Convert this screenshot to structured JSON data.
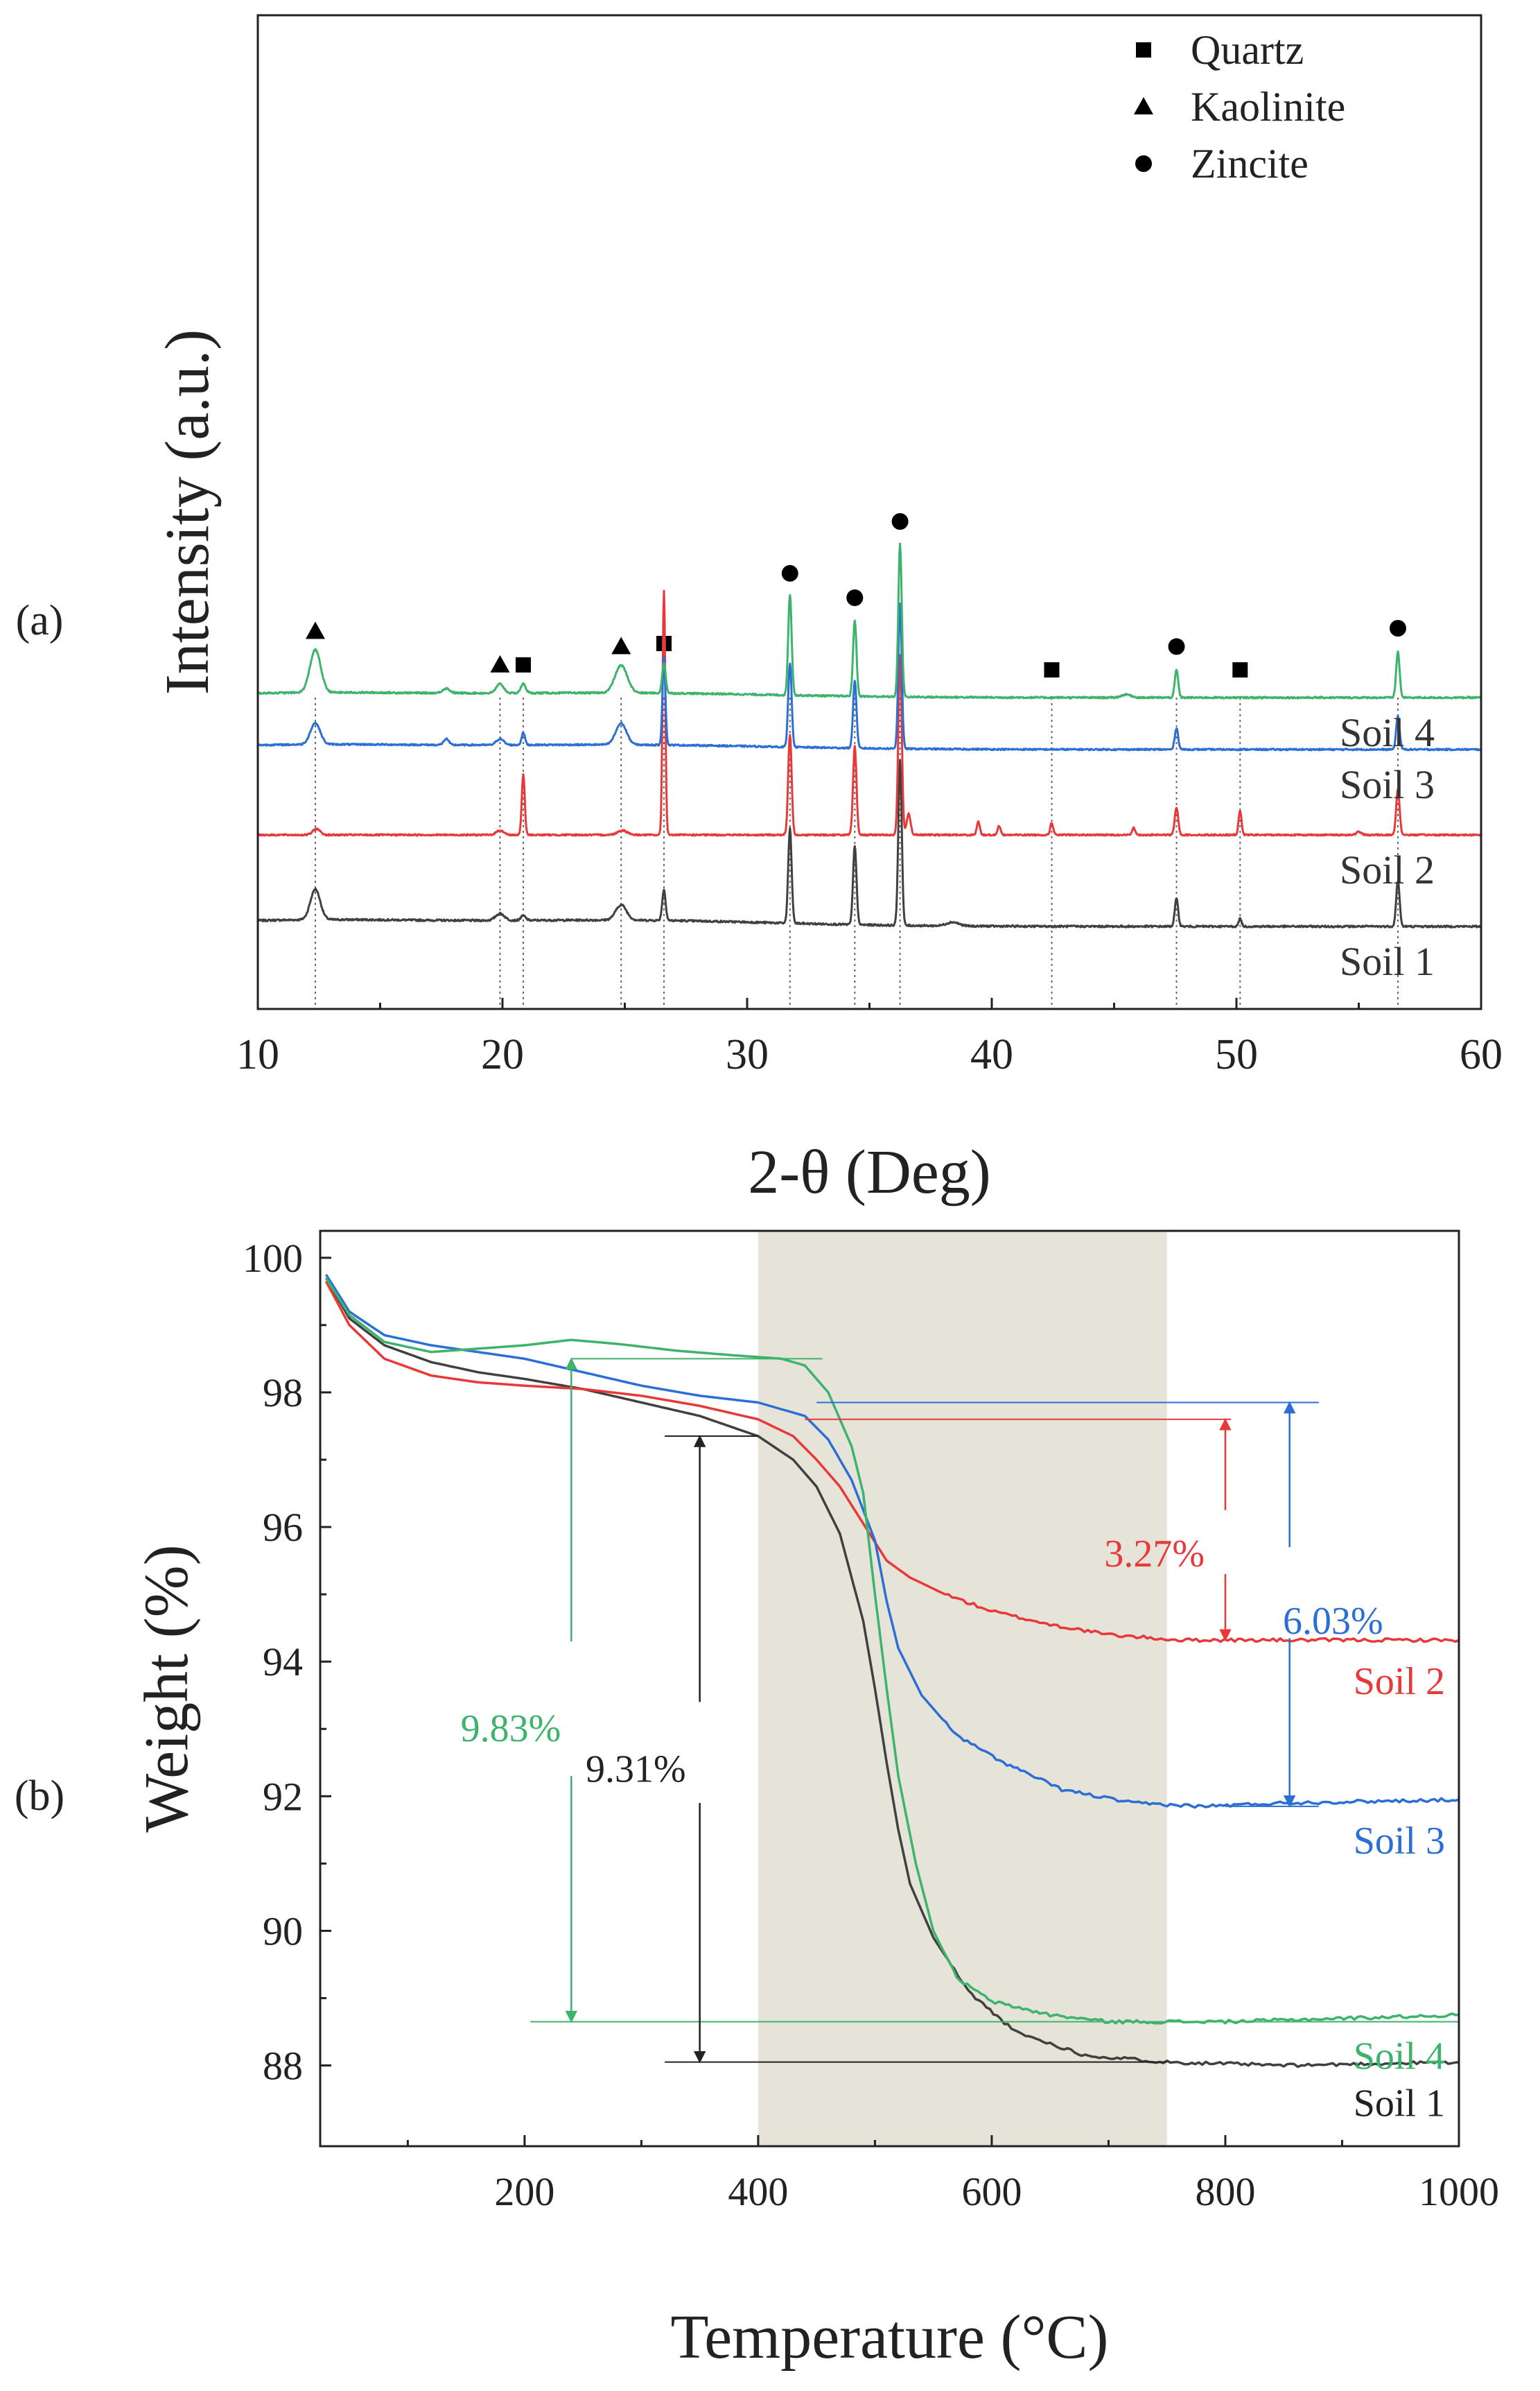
{
  "panel_labels": {
    "a": "(a)",
    "b": "(b)"
  },
  "chart_data": [
    {
      "type": "line",
      "panel": "a",
      "xlabel": "2-θ (Deg)",
      "ylabel": "Intensity (a.u.)",
      "xlim": [
        10,
        60
      ],
      "xticks": [
        10,
        20,
        30,
        40,
        50,
        60
      ],
      "yaxis_ticks_labeled": false,
      "grid": false,
      "background": "0.0",
      "legend": {
        "position": "top-right",
        "entries": [
          {
            "marker": "square",
            "label": "Quartz"
          },
          {
            "marker": "triangle",
            "label": "Kaolinite"
          },
          {
            "marker": "circle",
            "label": "Zincite"
          }
        ]
      },
      "series": [
        {
          "name": "Soil 1",
          "color": "#404040",
          "baseline": 0,
          "noise": 1.2,
          "peaks": [
            [
              12.35,
              20,
              0.2
            ],
            [
              19.9,
              4.5,
              0.18
            ],
            [
              20.85,
              3,
              0.1
            ],
            [
              24.85,
              10,
              0.22
            ],
            [
              26.6,
              20,
              0.07
            ],
            [
              31.75,
              62,
              0.07
            ],
            [
              34.4,
              52,
              0.07
            ],
            [
              36.25,
              108,
              0.07
            ],
            [
              38.4,
              2.5,
              0.25
            ],
            [
              47.55,
              18,
              0.07
            ],
            [
              50.15,
              5,
              0.06
            ],
            [
              56.6,
              30,
              0.07
            ]
          ],
          "humps": [
            [
              12,
              4,
              5
            ],
            [
              25,
              4,
              6
            ]
          ]
        },
        {
          "name": "Soil 2",
          "color": "#e8393a",
          "baseline": 60,
          "noise": 1.0,
          "peaks": [
            [
              12.4,
              4,
              0.15
            ],
            [
              19.9,
              3,
              0.15
            ],
            [
              20.85,
              40,
              0.06
            ],
            [
              24.9,
              3,
              0.2
            ],
            [
              26.6,
              160,
              0.055
            ],
            [
              31.75,
              66,
              0.07
            ],
            [
              34.4,
              58,
              0.07
            ],
            [
              36.25,
              118,
              0.07
            ],
            [
              36.6,
              14,
              0.08
            ],
            [
              39.45,
              9,
              0.06
            ],
            [
              40.3,
              6,
              0.06
            ],
            [
              42.45,
              8,
              0.06
            ],
            [
              45.8,
              5,
              0.06
            ],
            [
              47.55,
              18,
              0.07
            ],
            [
              50.15,
              16,
              0.06
            ],
            [
              55,
              2,
              0.1
            ],
            [
              56.6,
              30,
              0.07
            ]
          ],
          "humps": []
        },
        {
          "name": "Soil 3",
          "color": "#2b6fd6",
          "baseline": 116,
          "noise": 1.0,
          "peaks": [
            [
              12.35,
              14,
              0.2
            ],
            [
              17.7,
              4,
              0.1
            ],
            [
              19.9,
              4,
              0.15
            ],
            [
              20.85,
              8,
              0.07
            ],
            [
              24.85,
              14,
              0.22
            ],
            [
              26.6,
              58,
              0.06
            ],
            [
              31.75,
              55,
              0.07
            ],
            [
              34.4,
              44,
              0.07
            ],
            [
              36.25,
              95,
              0.07
            ],
            [
              47.55,
              14,
              0.07
            ],
            [
              56.6,
              22,
              0.07
            ]
          ],
          "humps": [
            [
              12,
              3,
              5
            ],
            [
              25,
              3,
              6
            ]
          ]
        },
        {
          "name": "Soil 4",
          "color": "#3db36b",
          "baseline": 150,
          "noise": 1.1,
          "peaks": [
            [
              12.35,
              28,
              0.22
            ],
            [
              17.7,
              3,
              0.15
            ],
            [
              19.9,
              6,
              0.15
            ],
            [
              20.85,
              6,
              0.1
            ],
            [
              24.85,
              18,
              0.25
            ],
            [
              26.6,
              20,
              0.07
            ],
            [
              31.75,
              66,
              0.07
            ],
            [
              34.4,
              50,
              0.07
            ],
            [
              36.25,
              100,
              0.07
            ],
            [
              45.5,
              2,
              0.2
            ],
            [
              47.55,
              18,
              0.07
            ],
            [
              56.6,
              30,
              0.07
            ]
          ],
          "humps": [
            [
              12,
              3,
              5
            ],
            [
              25,
              3,
              6
            ]
          ]
        }
      ],
      "phase_markers": [
        {
          "x": 12.35,
          "mineral": "Kaolinite"
        },
        {
          "x": 19.9,
          "mineral": "Kaolinite"
        },
        {
          "x": 20.85,
          "mineral": "Quartz"
        },
        {
          "x": 24.85,
          "mineral": "Kaolinite"
        },
        {
          "x": 26.6,
          "mineral": "Quartz"
        },
        {
          "x": 31.75,
          "mineral": "Zincite"
        },
        {
          "x": 34.4,
          "mineral": "Zincite"
        },
        {
          "x": 36.25,
          "mineral": "Zincite"
        },
        {
          "x": 42.45,
          "mineral": "Quartz"
        },
        {
          "x": 47.55,
          "mineral": "Zincite"
        },
        {
          "x": 50.15,
          "mineral": "Quartz"
        },
        {
          "x": 56.6,
          "mineral": "Zincite"
        }
      ]
    },
    {
      "type": "line",
      "panel": "b",
      "xlabel": "Temperature (°C)",
      "ylabel": "Weight (%)",
      "xlim": [
        25,
        1000
      ],
      "ylim": [
        86.8,
        100.4
      ],
      "xticks": [
        200,
        400,
        600,
        800,
        1000
      ],
      "yticks": [
        88,
        90,
        92,
        94,
        96,
        98,
        100
      ],
      "grid": false,
      "shaded_range": {
        "x": [
          400,
          750
        ],
        "color": "#e6e4d9"
      },
      "series": [
        {
          "name": "Soil 1",
          "color": "#404040",
          "label_color": "#222222",
          "points": [
            [
              30,
              99.7
            ],
            [
              50,
              99.1
            ],
            [
              80,
              98.7
            ],
            [
              120,
              98.45
            ],
            [
              160,
              98.3
            ],
            [
              200,
              98.2
            ],
            [
              250,
              98.05
            ],
            [
              300,
              97.85
            ],
            [
              350,
              97.65
            ],
            [
              400,
              97.35
            ],
            [
              430,
              97.0
            ],
            [
              450,
              96.6
            ],
            [
              470,
              95.9
            ],
            [
              490,
              94.6
            ],
            [
              500,
              93.6
            ],
            [
              510,
              92.5
            ],
            [
              520,
              91.5
            ],
            [
              530,
              90.7
            ],
            [
              550,
              89.9
            ],
            [
              580,
              89.1
            ],
            [
              620,
              88.5
            ],
            [
              680,
              88.15
            ],
            [
              750,
              88.05
            ],
            [
              850,
              88.0
            ],
            [
              1000,
              88.05
            ]
          ]
        },
        {
          "name": "Soil 2",
          "color": "#e8393a",
          "label_color": "#e8393a",
          "points": [
            [
              30,
              99.65
            ],
            [
              50,
              99.0
            ],
            [
              80,
              98.5
            ],
            [
              120,
              98.25
            ],
            [
              160,
              98.15
            ],
            [
              200,
              98.1
            ],
            [
              250,
              98.05
            ],
            [
              300,
              97.95
            ],
            [
              350,
              97.8
            ],
            [
              400,
              97.6
            ],
            [
              430,
              97.35
            ],
            [
              450,
              97.0
            ],
            [
              470,
              96.6
            ],
            [
              490,
              96.05
            ],
            [
              510,
              95.5
            ],
            [
              530,
              95.25
            ],
            [
              560,
              95.0
            ],
            [
              600,
              94.75
            ],
            [
              650,
              94.55
            ],
            [
              700,
              94.4
            ],
            [
              760,
              94.32
            ],
            [
              850,
              94.32
            ],
            [
              1000,
              94.32
            ]
          ]
        },
        {
          "name": "Soil 3",
          "color": "#2b6fd6",
          "label_color": "#2b6fd6",
          "points": [
            [
              30,
              99.75
            ],
            [
              50,
              99.2
            ],
            [
              80,
              98.85
            ],
            [
              120,
              98.7
            ],
            [
              160,
              98.6
            ],
            [
              200,
              98.5
            ],
            [
              250,
              98.3
            ],
            [
              300,
              98.1
            ],
            [
              350,
              97.95
            ],
            [
              400,
              97.85
            ],
            [
              440,
              97.65
            ],
            [
              460,
              97.3
            ],
            [
              480,
              96.7
            ],
            [
              500,
              95.8
            ],
            [
              510,
              94.9
            ],
            [
              520,
              94.2
            ],
            [
              540,
              93.5
            ],
            [
              570,
              92.9
            ],
            [
              610,
              92.5
            ],
            [
              660,
              92.1
            ],
            [
              720,
              91.9
            ],
            [
              780,
              91.85
            ],
            [
              850,
              91.9
            ],
            [
              1000,
              91.95
            ]
          ]
        },
        {
          "name": "Soil 4",
          "color": "#3db36b",
          "label_color": "#3db36b",
          "points": [
            [
              30,
              99.7
            ],
            [
              50,
              99.15
            ],
            [
              80,
              98.75
            ],
            [
              120,
              98.6
            ],
            [
              160,
              98.65
            ],
            [
              200,
              98.7
            ],
            [
              240,
              98.78
            ],
            [
              280,
              98.72
            ],
            [
              330,
              98.62
            ],
            [
              380,
              98.55
            ],
            [
              420,
              98.5
            ],
            [
              440,
              98.4
            ],
            [
              460,
              98.0
            ],
            [
              480,
              97.2
            ],
            [
              490,
              96.5
            ],
            [
              500,
              95.0
            ],
            [
              510,
              93.6
            ],
            [
              520,
              92.3
            ],
            [
              535,
              91.0
            ],
            [
              550,
              90.0
            ],
            [
              570,
              89.3
            ],
            [
              600,
              88.95
            ],
            [
              650,
              88.75
            ],
            [
              700,
              88.65
            ],
            [
              800,
              88.65
            ],
            [
              1000,
              88.75
            ]
          ]
        }
      ],
      "annotations": [
        {
          "text": "9.83%",
          "color": "#3db36b",
          "x": 240,
          "from": 98.5,
          "to": 88.65
        },
        {
          "text": "9.31%",
          "color": "#222222",
          "x": 350,
          "from": 97.35,
          "to": 88.05
        },
        {
          "text": "3.27%",
          "color": "#e8393a",
          "x": 800,
          "from": 97.6,
          "to": 94.32
        },
        {
          "text": "6.03%",
          "color": "#2b6fd6",
          "x": 855,
          "from": 97.85,
          "to": 91.85
        }
      ]
    }
  ]
}
